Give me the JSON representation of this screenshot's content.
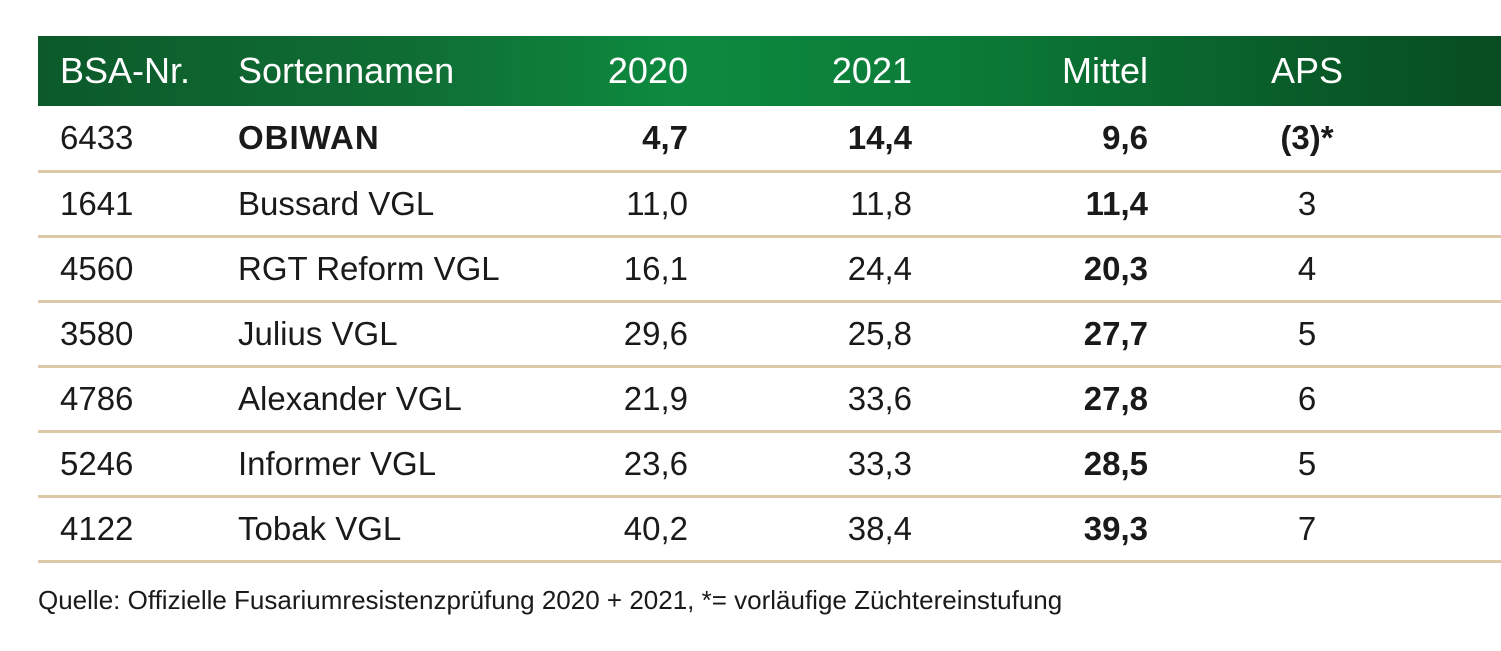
{
  "table": {
    "headers": [
      "BSA-Nr.",
      "Sortennamen",
      "2020",
      "2021",
      "Mittel",
      "APS"
    ],
    "rows": [
      {
        "bsa": "6433",
        "name": "OBIWAN",
        "y2020": "4,7",
        "y2021": "14,4",
        "mittel": "9,6",
        "aps": "(3)*"
      },
      {
        "bsa": "1641",
        "name": "Bussard VGL",
        "y2020": "11,0",
        "y2021": "11,8",
        "mittel": "11,4",
        "aps": "3"
      },
      {
        "bsa": "4560",
        "name": "RGT Reform VGL",
        "y2020": "16,1",
        "y2021": "24,4",
        "mittel": "20,3",
        "aps": "4"
      },
      {
        "bsa": "3580",
        "name": "Julius VGL",
        "y2020": "29,6",
        "y2021": "25,8",
        "mittel": "27,7",
        "aps": "5"
      },
      {
        "bsa": "4786",
        "name": "Alexander VGL",
        "y2020": "21,9",
        "y2021": "33,6",
        "mittel": "27,8",
        "aps": "6"
      },
      {
        "bsa": "5246",
        "name": "Informer VGL",
        "y2020": "23,6",
        "y2021": "33,3",
        "mittel": "28,5",
        "aps": "5"
      },
      {
        "bsa": "4122",
        "name": "Tobak VGL",
        "y2020": "40,2",
        "y2021": "38,4",
        "mittel": "39,3",
        "aps": "7"
      }
    ]
  },
  "footnote": "Quelle: Offizielle Fusariumresistenzprüfung 2020 + 2021, *= vorläufige Züchtereinstufung",
  "colors": {
    "header_bg": "#0d8a3f",
    "row_divider": "#dcc7a6"
  }
}
